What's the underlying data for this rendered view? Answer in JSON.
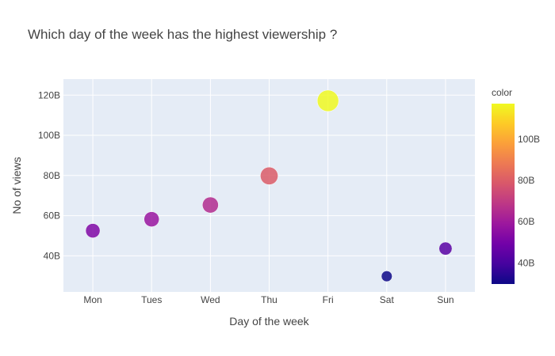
{
  "chart_data": {
    "type": "scatter",
    "title": "Which day of the week has the highest viewership ?",
    "xlabel": "Day of the week",
    "ylabel": "No of views",
    "categories": [
      "Mon",
      "Tues",
      "Wed",
      "Thu",
      "Fri",
      "Sat",
      "Sun"
    ],
    "series": [
      {
        "values": [
          52.5,
          58.2,
          65.3,
          79.8,
          117.2,
          29.8,
          43.6
        ],
        "unit": "B"
      }
    ],
    "ylim": [
      22,
      128
    ],
    "yticks": [
      40,
      60,
      80,
      100,
      120
    ],
    "ytick_labels": [
      "40B",
      "60B",
      "80B",
      "100B",
      "120B"
    ],
    "grid": true,
    "colorbar": {
      "title": "color",
      "range": [
        29.8,
        117.2
      ],
      "ticks": [
        40,
        60,
        80,
        100
      ],
      "tick_labels": [
        "40B",
        "60B",
        "80B",
        "100B"
      ],
      "colorscale": [
        "#0d0887",
        "#46039f",
        "#7201a8",
        "#9c179e",
        "#bd3786",
        "#d8576b",
        "#ed7953",
        "#fb9f3a",
        "#fdca26",
        "#f0f921"
      ]
    },
    "colors": {
      "plot_bg": "#e5ecf6",
      "grid": "#ffffff",
      "text": "#444444"
    }
  }
}
